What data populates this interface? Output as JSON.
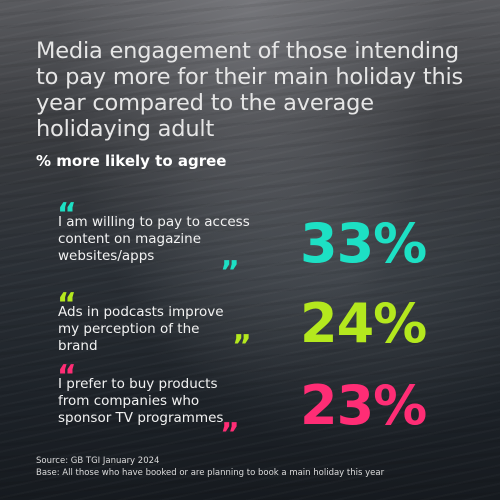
{
  "title": "Media engagement of those intending to pay more for their main holiday this year compared to the average holidaying adult",
  "subtitle": "% more likely to agree",
  "quote_open": "“",
  "quote_close": "”",
  "items": [
    {
      "text": "I am willing to pay to access content on magazine websites/apps",
      "value": "33%",
      "color": "#1de0c4"
    },
    {
      "text": "Ads in podcasts improve my perception of the brand",
      "value": "24%",
      "color": "#b4e81e"
    },
    {
      "text": "I prefer to buy products from companies who sponsor TV programmes",
      "value": "23%",
      "color": "#ff2d75"
    }
  ],
  "source_line": "Source: GB TGI January 2024",
  "base_line": "Base: All those who have booked or are planning to book a main holiday this year"
}
